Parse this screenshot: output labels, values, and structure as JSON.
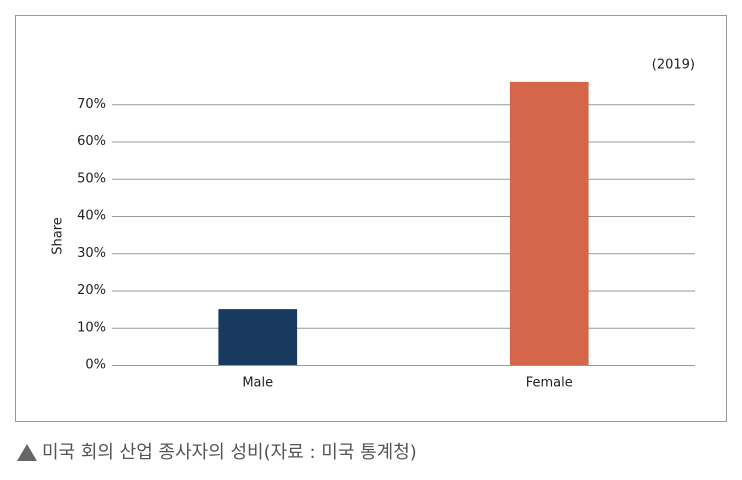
{
  "chart_data": {
    "type": "bar",
    "subtitle": "(2019)",
    "y_label": "Share",
    "categories": [
      "Male",
      "Female"
    ],
    "values": [
      15,
      76
    ],
    "colors": [
      "#173a5e",
      "#d4664a"
    ],
    "ylim": [
      0,
      80
    ],
    "yticks": [
      {
        "value": 0,
        "label": "0%"
      },
      {
        "value": 10,
        "label": "10%"
      },
      {
        "value": 20,
        "label": "20%"
      },
      {
        "value": 30,
        "label": "30%"
      },
      {
        "value": 40,
        "label": "40%"
      },
      {
        "value": 50,
        "label": "50%"
      },
      {
        "value": 60,
        "label": "60%"
      },
      {
        "value": 70,
        "label": "70%"
      }
    ],
    "grid": true
  },
  "caption": "미국 회의 산업 종사자의 성비(자료 : 미국 통계청)"
}
